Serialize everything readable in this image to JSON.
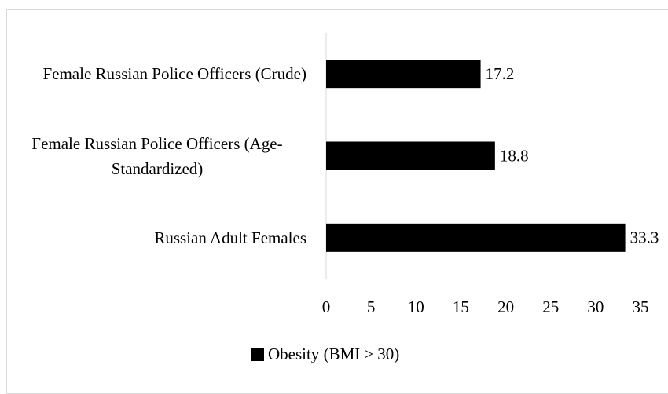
{
  "chart_data": {
    "type": "bar",
    "orientation": "horizontal",
    "categories": [
      "Female Russian Police Officers (Crude)",
      "Female Russian Police Officers (Age-Standardized)",
      "Russian Adult Females"
    ],
    "series": [
      {
        "name": "Obesity (BMI ≥ 30)",
        "color": "#000000",
        "values": [
          17.2,
          18.8,
          33.3
        ]
      }
    ],
    "xlim": [
      0,
      35
    ],
    "xticks": [
      0,
      5,
      10,
      15,
      20,
      25,
      30,
      35
    ],
    "grid": false,
    "legend": "bottom"
  }
}
